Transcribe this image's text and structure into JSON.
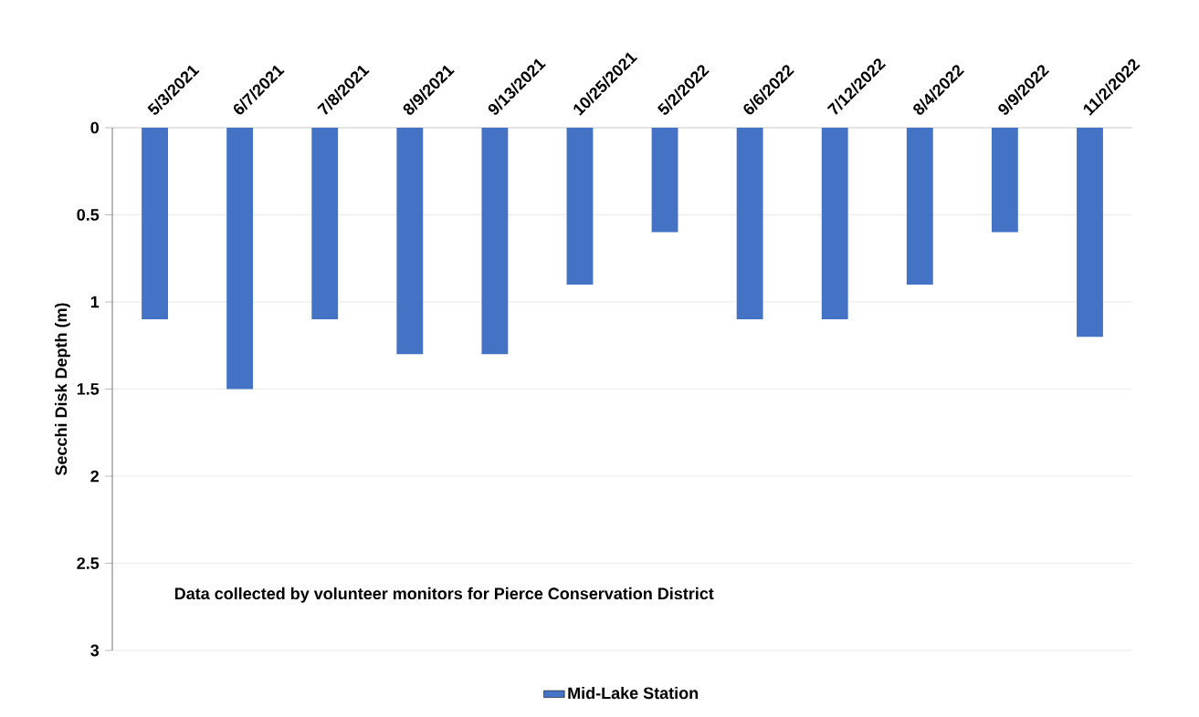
{
  "chart_data": {
    "type": "bar",
    "ylabel": "Secchi Disk Depth (m)",
    "categories": [
      "5/3/2021",
      "6/7/2021",
      "7/8/2021",
      "8/9/2021",
      "9/13/2021",
      "10/25/2021",
      "5/2/2022",
      "6/6/2022",
      "7/12/2022",
      "8/4/2022",
      "9/9/2022",
      "11/2/2022"
    ],
    "series": [
      {
        "name": "Mid-Lake Station",
        "color": "#4472c4",
        "values": [
          1.1,
          1.5,
          1.1,
          1.3,
          1.3,
          0.9,
          0.6,
          1.1,
          1.1,
          0.9,
          0.6,
          1.2
        ]
      }
    ],
    "ylim": [
      3,
      0
    ],
    "yticks": [
      0,
      0.5,
      1,
      1.5,
      2,
      2.5,
      3
    ],
    "grid": "y",
    "legend": "bottom",
    "annotations": [
      "Data collected by volunteer monitors for Pierce Conservation District"
    ]
  }
}
